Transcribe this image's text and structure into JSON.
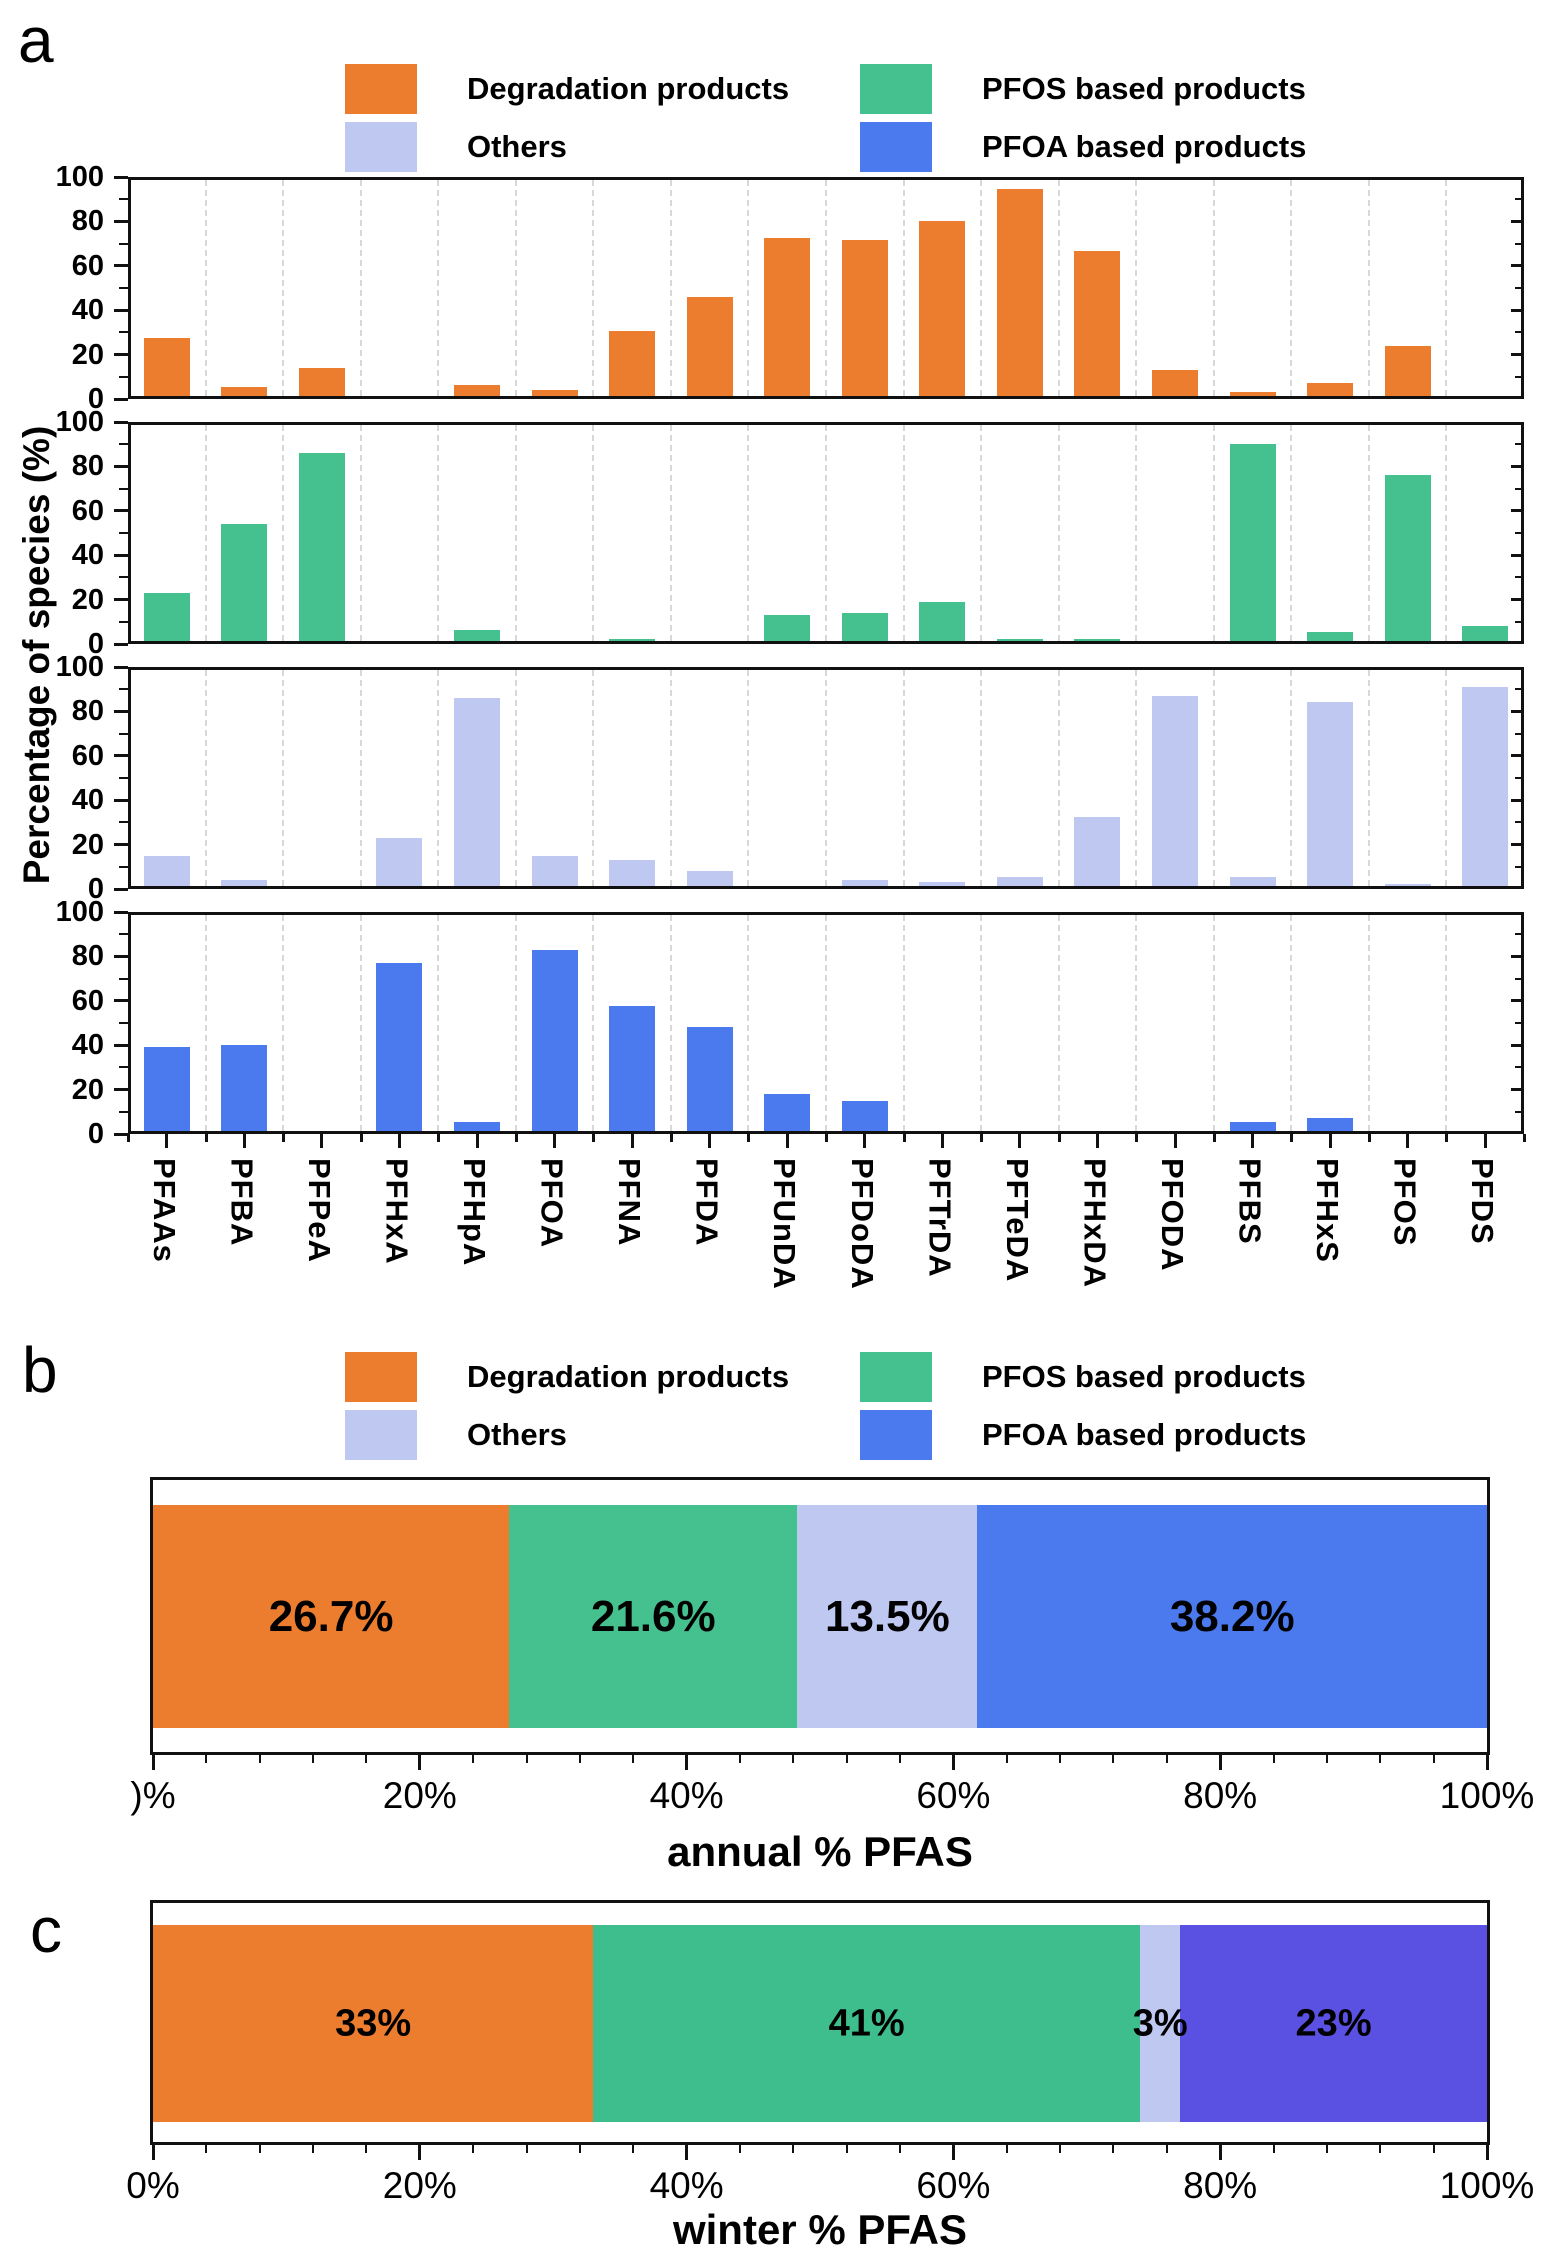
{
  "sections": {
    "a": "a",
    "b": "b",
    "c": "c"
  },
  "legend": {
    "items": [
      {
        "label": "Degradation products",
        "color": "#ED7D2E"
      },
      {
        "label": "Others",
        "color": "#BFC8F0"
      },
      {
        "label": "PFOS based products",
        "color": "#45C08F"
      },
      {
        "label": "PFOA based products",
        "color": "#4B7AEE"
      }
    ]
  },
  "chart_data": [
    {
      "type": "bar",
      "panel": "a",
      "ylabel": "Percentage of species (%)",
      "ylim": [
        0,
        100
      ],
      "y_ticks": [
        100,
        80,
        60,
        40,
        20,
        0
      ],
      "grid": "vertical-dashed",
      "legend_position": "top",
      "categories": [
        "PFAAs",
        "PFBA",
        "PFPeA",
        "PFHxA",
        "PFHpA",
        "PFOA",
        "PFNA",
        "PFDA",
        "PFUnDA",
        "PFDoDA",
        "PFTrDA",
        "PFTeDA",
        "PFHxDA",
        "PFODA",
        "PFBS",
        "PFHxS",
        "PFOS",
        "PFDS"
      ],
      "series": [
        {
          "name": "Degradation products",
          "color": "#ED7D2E",
          "values": [
            27,
            4,
            13,
            0,
            5,
            3,
            30,
            46,
            73,
            72,
            81,
            96,
            67,
            12,
            2,
            6,
            23,
            0
          ]
        },
        {
          "name": "PFOS based products",
          "color": "#45C08F",
          "values": [
            22,
            54,
            87,
            0,
            5,
            0,
            1,
            0,
            12,
            13,
            18,
            1,
            1,
            0,
            91,
            4,
            77,
            7
          ]
        },
        {
          "name": "Others",
          "color": "#BFC8F0",
          "values": [
            14,
            3,
            0,
            22,
            87,
            14,
            12,
            7,
            0,
            3,
            2,
            4,
            32,
            88,
            4,
            85,
            1,
            92
          ]
        },
        {
          "name": "PFOA based products",
          "color": "#4B7AEE",
          "values": [
            39,
            40,
            0,
            78,
            4,
            84,
            58,
            48,
            17,
            14,
            0,
            0,
            0,
            0,
            4,
            6,
            0,
            0
          ]
        }
      ]
    },
    {
      "type": "stacked-bar-horizontal",
      "panel": "b",
      "xlabel": "annual % PFAS",
      "x_tick_labels": [
        ")%",
        "20%",
        "40%",
        "60%",
        "80%",
        "100%"
      ],
      "segments": [
        {
          "name": "Degradation products",
          "value": 26.7,
          "label": "26.7%",
          "color": "#ED7D2E"
        },
        {
          "name": "PFOS based products",
          "value": 21.6,
          "label": "21.6%",
          "color": "#45C08F"
        },
        {
          "name": "Others",
          "value": 13.5,
          "label": "13.5%",
          "color": "#BFC8F0"
        },
        {
          "name": "PFOA based products",
          "value": 38.2,
          "label": "38.2%",
          "color": "#4B7AEE"
        }
      ]
    },
    {
      "type": "stacked-bar-horizontal",
      "panel": "c",
      "xlabel": "winter % PFAS",
      "x_tick_labels": [
        "0%",
        "20%",
        "40%",
        "60%",
        "80%",
        "100%"
      ],
      "segments": [
        {
          "name": "Degradation products",
          "value": 33,
          "label": "33%",
          "color": "#ED7D2E"
        },
        {
          "name": "PFOS based products",
          "value": 41,
          "label": "41%",
          "color": "#3DBE8C"
        },
        {
          "name": "Others",
          "value": 3,
          "label": "3%",
          "color": "#BFC8F0"
        },
        {
          "name": "PFOA based products",
          "value": 23,
          "label": "23%",
          "color": "#5A50E2"
        }
      ]
    }
  ]
}
